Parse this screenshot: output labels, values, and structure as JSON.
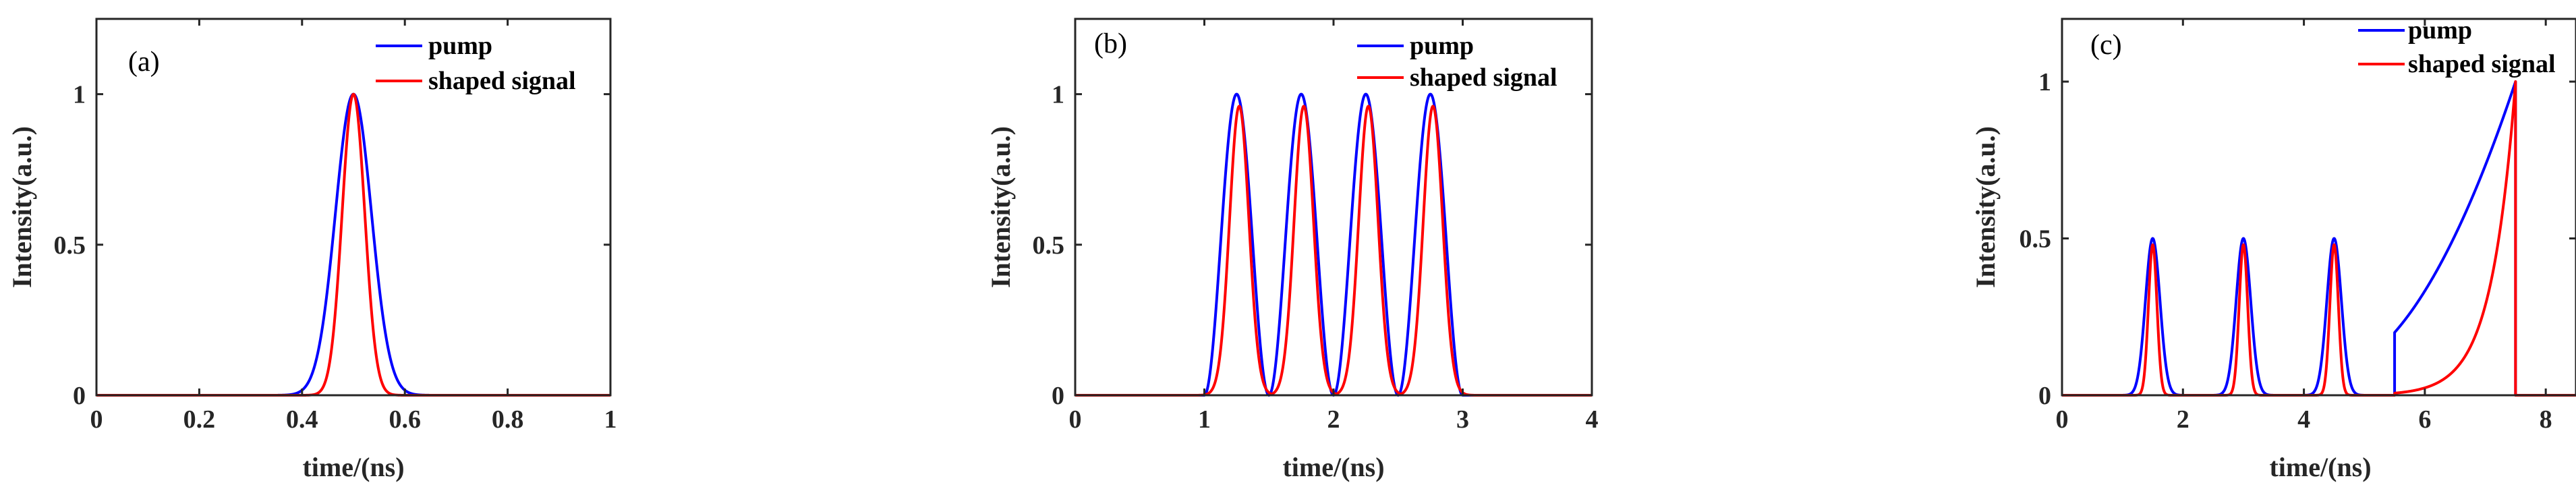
{
  "chart_data": [
    {
      "type": "line",
      "panel_label": "(a)",
      "xlabel": "time/(ns)",
      "ylabel": "Intensity(a.u.)",
      "xlim": [
        0,
        1
      ],
      "ylim": [
        0,
        1.25
      ],
      "xticks": [
        0,
        0.2,
        0.4,
        0.6,
        0.8,
        1
      ],
      "xtick_labels": [
        "0",
        "0.2",
        "0.4",
        "0.6",
        "0.8",
        "1"
      ],
      "yticks": [
        0,
        0.5,
        1
      ],
      "ytick_labels": [
        "0",
        "0.5",
        "1"
      ],
      "legend": {
        "position": "top-right",
        "entries": [
          "pump",
          "shaped signal"
        ]
      },
      "series": [
        {
          "name": "pump",
          "color": "#0000ff",
          "model": "gaussian_pulses",
          "centers": [
            0.5
          ],
          "amplitudes": [
            1
          ],
          "sigma": 0.035
        },
        {
          "name": "shaped signal",
          "color": "#ff0000",
          "model": "gaussian_pulses",
          "centers": [
            0.5
          ],
          "amplitudes": [
            1
          ],
          "sigma": 0.022
        }
      ]
    },
    {
      "type": "line",
      "panel_label": "(b)",
      "xlabel": "time/(ns)",
      "ylabel": "Intensity(a.u.)",
      "xlim": [
        0,
        4
      ],
      "ylim": [
        0,
        1.25
      ],
      "xticks": [
        0,
        1,
        2,
        3,
        4
      ],
      "xtick_labels": [
        "0",
        "1",
        "2",
        "3",
        "4"
      ],
      "yticks": [
        0,
        0.5,
        1
      ],
      "ytick_labels": [
        "0",
        "0.5",
        "1"
      ],
      "legend": {
        "position": "top-right",
        "entries": [
          "pump",
          "shaped signal"
        ]
      },
      "series": [
        {
          "name": "pump",
          "color": "#0000ff",
          "model": "cos2_pulses",
          "centers": [
            1.25,
            1.75,
            2.25,
            2.75
          ],
          "amplitudes": [
            1,
            1,
            1,
            1
          ],
          "halfwidth": 0.25
        },
        {
          "name": "shaped signal",
          "color": "#ff0000",
          "model": "gaussian_pulses",
          "centers": [
            1.27,
            1.77,
            2.27,
            2.77
          ],
          "amplitudes": [
            0.96,
            0.96,
            0.96,
            0.96
          ],
          "sigma": 0.075
        }
      ]
    },
    {
      "type": "line",
      "panel_label": "(c)",
      "xlabel": "time/(ns)",
      "ylabel": "Intensity(a.u.)",
      "xlim": [
        0,
        8.5
      ],
      "ylim": [
        0,
        1.2
      ],
      "xticks": [
        0,
        2,
        4,
        6,
        8
      ],
      "xtick_labels": [
        "0",
        "2",
        "4",
        "6",
        "8"
      ],
      "yticks": [
        0,
        0.5,
        1
      ],
      "ytick_labels": [
        "0",
        "0.5",
        "1"
      ],
      "legend": {
        "position": "top-right",
        "entries": [
          "pump",
          "shaped signal"
        ]
      },
      "series": [
        {
          "name": "pump",
          "color": "#0000ff",
          "model": "pulses_plus_ramp",
          "centers": [
            1.5,
            3.0,
            4.5
          ],
          "amplitudes": [
            0.5,
            0.5,
            0.5
          ],
          "sigma": 0.12,
          "ramp": {
            "start": 5.5,
            "end": 7.5,
            "start_value": 0.2,
            "end_value": 1.0
          }
        },
        {
          "name": "shaped signal",
          "color": "#ff0000",
          "model": "pulses_plus_exp",
          "centers": [
            1.5,
            3.0,
            4.5
          ],
          "amplitudes": [
            0.48,
            0.48,
            0.48
          ],
          "sigma": 0.07,
          "exp": {
            "start": 5.5,
            "end": 7.5,
            "end_value": 1.0,
            "tau": 0.4
          }
        }
      ]
    }
  ]
}
